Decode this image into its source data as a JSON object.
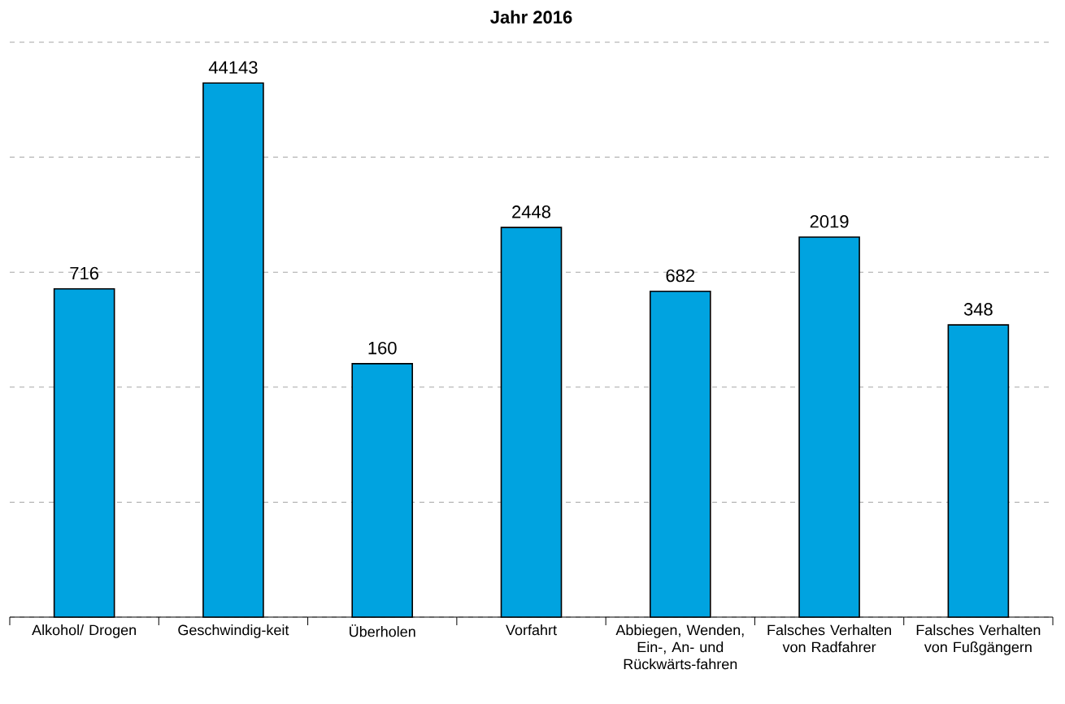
{
  "chart_data": {
    "type": "bar",
    "title": "Jahr 2016",
    "categories": [
      "Alkohol/ Drogen",
      "Geschwindig-keit",
      "Überholen",
      "Vorfahrt",
      "Abbiegen, Wenden, Ein-, An- und Rückwärts-fahren",
      "Falsches Verhalten von Radfahrer",
      "Falsches Verhalten von Fußgängern"
    ],
    "values": [
      716,
      44143,
      160,
      2448,
      682,
      2019,
      348
    ],
    "color": "#00a3e0",
    "log": "y",
    "ylim": [
      1,
      100000
    ],
    "tick_labels": "x",
    "grid": "y",
    "data_labels": true
  }
}
